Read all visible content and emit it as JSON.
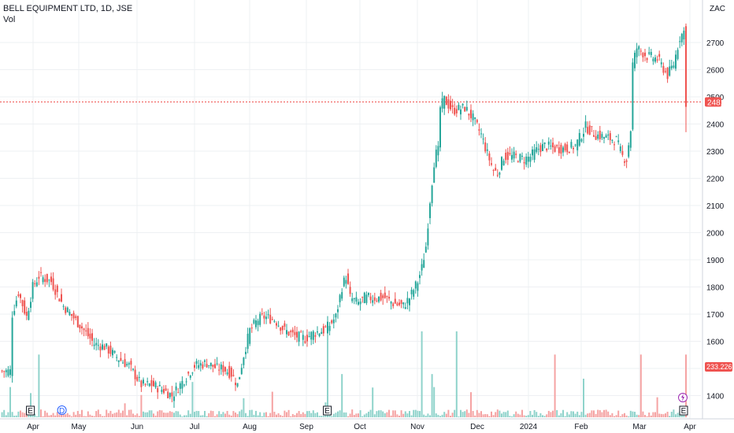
{
  "header": {
    "title": "BELL EQUIPMENT LTD, 1D, JSE",
    "volume_label": "Vol",
    "currency": "ZAC"
  },
  "markers": {
    "earnings": "E",
    "dividend": "D",
    "split_icon": "lightning-icon"
  },
  "colors": {
    "up": "#26a69a",
    "down": "#ef5350",
    "vol_up": "#8fd3cb",
    "vol_down": "#f5a3a3",
    "grid": "#eef0f3",
    "price_line": "#ef5350",
    "dividend_marker": "#2962ff",
    "split_marker": "#9c27b0"
  },
  "chart_data": {
    "type": "candlestick",
    "title": "BELL EQUIPMENT LTD, 1D, JSE",
    "currency": "ZAC",
    "y_ticks": [
      1400,
      1500,
      1600,
      1700,
      1800,
      1900,
      2000,
      2100,
      2200,
      2300,
      2400,
      2500,
      2600,
      2700
    ],
    "ylim": [
      1360,
      2790
    ],
    "x_ticks": [
      "Apr",
      "May",
      "Jun",
      "Jul",
      "Aug",
      "Sep",
      "Oct",
      "Nov",
      "Dec",
      "2024",
      "Feb",
      "Mar",
      "Apr"
    ],
    "last_price": 2481,
    "last_volume_label": "233.226 K",
    "price_path": [
      [
        0,
        1490
      ],
      [
        4,
        1490
      ],
      [
        5,
        1700
      ],
      [
        8,
        1780
      ],
      [
        12,
        1690
      ],
      [
        15,
        1800
      ],
      [
        18,
        1840
      ],
      [
        24,
        1820
      ],
      [
        30,
        1730
      ],
      [
        38,
        1660
      ],
      [
        45,
        1590
      ],
      [
        50,
        1580
      ],
      [
        58,
        1530
      ],
      [
        62,
        1510
      ],
      [
        68,
        1440
      ],
      [
        73,
        1440
      ],
      [
        79,
        1420
      ],
      [
        83,
        1400
      ],
      [
        89,
        1460
      ],
      [
        94,
        1510
      ],
      [
        100,
        1520
      ],
      [
        105,
        1500
      ],
      [
        108,
        1500
      ],
      [
        112,
        1480
      ],
      [
        115,
        1440
      ],
      [
        118,
        1550
      ],
      [
        121,
        1640
      ],
      [
        125,
        1680
      ],
      [
        128,
        1690
      ],
      [
        133,
        1680
      ],
      [
        138,
        1640
      ],
      [
        143,
        1620
      ],
      [
        148,
        1610
      ],
      [
        152,
        1630
      ],
      [
        157,
        1640
      ],
      [
        160,
        1660
      ],
      [
        163,
        1690
      ],
      [
        166,
        1800
      ],
      [
        168,
        1840
      ],
      [
        170,
        1760
      ],
      [
        174,
        1740
      ],
      [
        177,
        1760
      ],
      [
        182,
        1760
      ],
      [
        187,
        1760
      ],
      [
        191,
        1740
      ],
      [
        196,
        1730
      ],
      [
        199,
        1760
      ],
      [
        201,
        1790
      ],
      [
        203,
        1820
      ],
      [
        205,
        1870
      ],
      [
        207,
        1950
      ],
      [
        209,
        2120
      ],
      [
        211,
        2260
      ],
      [
        212,
        2290
      ],
      [
        213,
        2300
      ],
      [
        214,
        2460
      ],
      [
        216,
        2490
      ],
      [
        220,
        2450
      ],
      [
        226,
        2460
      ],
      [
        230,
        2420
      ],
      [
        234,
        2360
      ],
      [
        237,
        2290
      ],
      [
        240,
        2230
      ],
      [
        242,
        2220
      ],
      [
        245,
        2280
      ],
      [
        250,
        2280
      ],
      [
        255,
        2270
      ],
      [
        258,
        2280
      ],
      [
        262,
        2310
      ],
      [
        265,
        2320
      ],
      [
        270,
        2310
      ],
      [
        276,
        2310
      ],
      [
        280,
        2320
      ],
      [
        285,
        2390
      ],
      [
        290,
        2360
      ],
      [
        295,
        2350
      ],
      [
        300,
        2340
      ],
      [
        303,
        2280
      ],
      [
        305,
        2270
      ],
      [
        307,
        2380
      ],
      [
        308,
        2620
      ],
      [
        310,
        2680
      ],
      [
        315,
        2650
      ],
      [
        320,
        2640
      ],
      [
        325,
        2580
      ],
      [
        328,
        2620
      ],
      [
        331,
        2720
      ],
      [
        333,
        2740
      ],
      [
        334,
        2481
      ]
    ],
    "volume_scale_max": 2000000,
    "volume_baseline": 60000,
    "volume_spikes": [
      [
        4,
        650000
      ],
      [
        14,
        520000
      ],
      [
        18,
        1350000
      ],
      [
        60,
        300000
      ],
      [
        68,
        480000
      ],
      [
        93,
        760000
      ],
      [
        118,
        410000
      ],
      [
        132,
        550000
      ],
      [
        158,
        320000
      ],
      [
        159,
        2000000
      ],
      [
        166,
        930000
      ],
      [
        181,
        640000
      ],
      [
        205,
        1850000
      ],
      [
        210,
        930000
      ],
      [
        211,
        650000
      ],
      [
        222,
        1850000
      ],
      [
        229,
        540000
      ],
      [
        270,
        1350000
      ],
      [
        284,
        830000
      ],
      [
        312,
        1350000
      ],
      [
        320,
        430000
      ],
      [
        334,
        1350000
      ]
    ],
    "earnings_markers_at": [
      15,
      160,
      334
    ],
    "dividend_marker_at": 30,
    "split_marker_at": 334
  }
}
